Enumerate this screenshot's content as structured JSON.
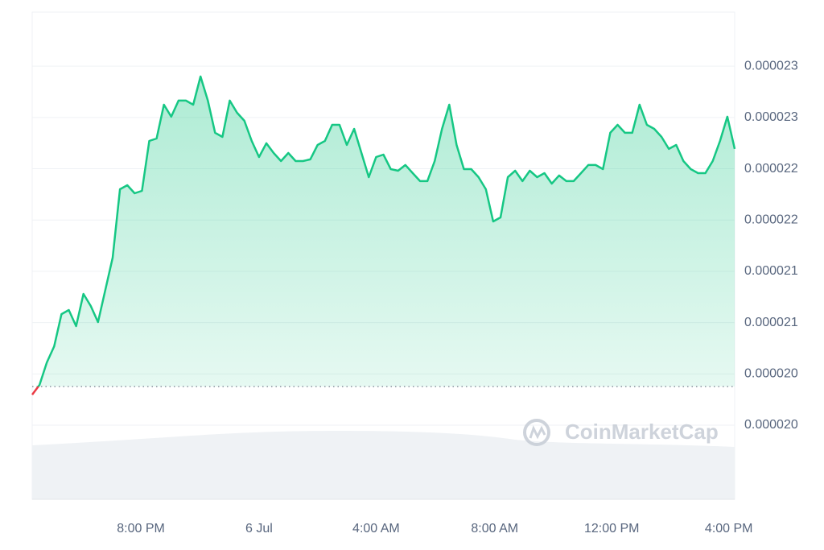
{
  "chart_data": {
    "type": "area-line",
    "watermark": "CoinMarketCap",
    "series": [
      {
        "color": "#16c784",
        "below_color": "#ea3943",
        "values": [
          2.0298e-05,
          2.0393e-05,
          2.0612e-05,
          2.0769e-05,
          2.1083e-05,
          2.1123e-05,
          2.0966e-05,
          2.128e-05,
          2.1162e-05,
          2.1005e-05,
          2.1319e-05,
          2.1633e-05,
          2.23e-05,
          2.2339e-05,
          2.2261e-05,
          2.2284e-05,
          2.2771e-05,
          2.2795e-05,
          2.3124e-05,
          2.3007e-05,
          2.3164e-05,
          2.3164e-05,
          2.3124e-05,
          2.3399e-05,
          2.3164e-05,
          2.285e-05,
          2.281e-05,
          2.3164e-05,
          2.3046e-05,
          2.2967e-05,
          2.2771e-05,
          2.2614e-05,
          2.2748e-05,
          2.2653e-05,
          2.2575e-05,
          2.2653e-05,
          2.2575e-05,
          2.2575e-05,
          2.2591e-05,
          2.2732e-05,
          2.2771e-05,
          2.2928e-05,
          2.2928e-05,
          2.2732e-05,
          2.2889e-05,
          2.2653e-05,
          2.2418e-05,
          2.2614e-05,
          2.2638e-05,
          2.2496e-05,
          2.2481e-05,
          2.2536e-05,
          2.2457e-05,
          2.2379e-05,
          2.2379e-05,
          2.2575e-05,
          2.2889e-05,
          2.3124e-05,
          2.2732e-05,
          2.2496e-05,
          2.2496e-05,
          2.2418e-05,
          2.23e-05,
          2.1986e-05,
          2.2025e-05,
          2.2418e-05,
          2.2481e-05,
          2.2379e-05,
          2.2481e-05,
          2.2418e-05,
          2.2457e-05,
          2.2355e-05,
          2.2434e-05,
          2.2379e-05,
          2.2379e-05,
          2.2457e-05,
          2.2536e-05,
          2.2536e-05,
          2.2496e-05,
          2.285e-05,
          2.2928e-05,
          2.285e-05,
          2.285e-05,
          2.3124e-05,
          2.2928e-05,
          2.2889e-05,
          2.281e-05,
          2.2693e-05,
          2.2732e-05,
          2.2575e-05,
          2.2496e-05,
          2.2457e-05,
          2.2457e-05,
          2.2575e-05,
          2.2771e-05,
          2.3007e-05,
          2.2693e-05
        ]
      }
    ],
    "reference": 2.0377e-05,
    "xlim": [
      0,
      96
    ],
    "xticks": [
      {
        "value": 14.85,
        "label": "8:00 PM"
      },
      {
        "value": 31.0,
        "label": "6 Jul"
      },
      {
        "value": 47.0,
        "label": "4:00 AM"
      },
      {
        "value": 63.2,
        "label": "8:00 AM"
      },
      {
        "value": 79.2,
        "label": "12:00 PM"
      },
      {
        "value": 95.2,
        "label": "4:00 PM"
      }
    ],
    "ylim": [
      1.9278e-05,
      2.4027e-05
    ],
    "yticks": [
      {
        "value": 2.35e-05,
        "label": "0.000023"
      },
      {
        "value": 2.3e-05,
        "label": "0.000023"
      },
      {
        "value": 2.25e-05,
        "label": "0.000022"
      },
      {
        "value": 2.2e-05,
        "label": "0.000022"
      },
      {
        "value": 2.15e-05,
        "label": "0.000021"
      },
      {
        "value": 2.1e-05,
        "label": "0.000021"
      },
      {
        "value": 2.05e-05,
        "label": "0.000020"
      },
      {
        "value": 2e-05,
        "label": "0.000020"
      }
    ],
    "grid": true
  }
}
